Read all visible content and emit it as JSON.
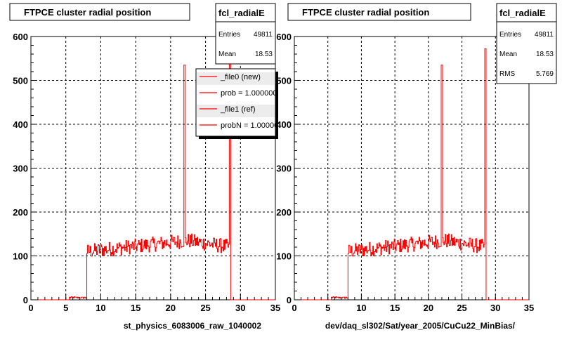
{
  "chart_data": [
    {
      "type": "histogram",
      "title": "FTPCE cluster radial position",
      "xlabel": "st_physics_6083006_raw_1040002",
      "ylabel": "",
      "xlim": [
        0,
        35
      ],
      "ylim": [
        0,
        600
      ],
      "xticks": [
        0,
        5,
        10,
        15,
        20,
        25,
        30,
        35
      ],
      "yticks": [
        0,
        100,
        200,
        300,
        400,
        500,
        600
      ],
      "grid": true,
      "line_color": "#ff0000",
      "stats": {
        "name": "fcl_radialE",
        "rows": [
          {
            "label": "Entries",
            "value": "49811"
          },
          {
            "label": "Mean",
            "value": "18.53"
          }
        ]
      },
      "legend": {
        "placement": "top-right",
        "entries": [
          "_file0 (new)",
          "prob = 1.000000",
          "_file1 (ref)",
          "probN = 1.000000"
        ]
      },
      "series": [
        {
          "name": "_file0 (new)",
          "binning": {
            "start": 1,
            "end": 35,
            "width": 0.1
          },
          "features": {
            "zero_below": 8.0,
            "low_level": 5,
            "low_start": 5.5,
            "rise_at": 8.0,
            "plateau_start": 110,
            "plateau_mid": 135,
            "plateau_end": 120,
            "drop_at": 28.6,
            "spikes": [
              {
                "x": 22.0,
                "y": 535
              },
              {
                "x": 28.5,
                "y": 572
              }
            ]
          }
        }
      ]
    },
    {
      "type": "histogram",
      "title": "FTPCE cluster radial position",
      "xlabel": "dev/daq_sl302/Sat/year_2005/CuCu22_MinBias/",
      "ylabel": "",
      "xlim": [
        0,
        35
      ],
      "ylim": [
        0,
        600
      ],
      "xticks": [
        0,
        5,
        10,
        15,
        20,
        25,
        30,
        35
      ],
      "yticks": [
        0,
        100,
        200,
        300,
        400,
        500,
        600
      ],
      "grid": true,
      "line_color": "#ff0000",
      "stats": {
        "name": "fcl_radialE",
        "rows": [
          {
            "label": "Entries",
            "value": "49811"
          },
          {
            "label": "Mean",
            "value": "18.53"
          },
          {
            "label": "RMS",
            "value": "5.769"
          }
        ]
      },
      "series": [
        {
          "name": "",
          "binning": {
            "start": 1,
            "end": 35,
            "width": 0.1
          },
          "features": {
            "zero_below": 8.0,
            "low_level": 5,
            "low_start": 5.5,
            "rise_at": 8.0,
            "plateau_start": 110,
            "plateau_mid": 135,
            "plateau_end": 120,
            "drop_at": 28.6,
            "spikes": [
              {
                "x": 22.0,
                "y": 535
              },
              {
                "x": 28.5,
                "y": 572
              }
            ]
          }
        }
      ]
    }
  ]
}
